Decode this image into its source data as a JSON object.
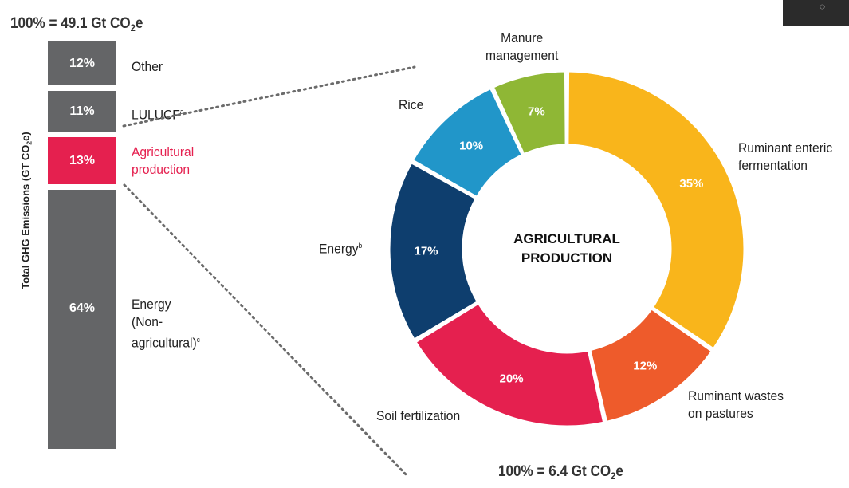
{
  "header": {
    "total_left": "100% = 49.1 Gt CO",
    "total_left_sub": "2",
    "total_left_tail": "e",
    "total_right": "100% = 6.4 Gt CO",
    "total_right_sub": "2",
    "total_right_tail": "e"
  },
  "ylabel": {
    "main": "Total GHG Emissions (GT CO",
    "sub": "2",
    "tail": "e)"
  },
  "center_title": {
    "line1": "AGRICULTURAL",
    "line2": "PRODUCTION"
  },
  "colors": {
    "bar_gray": "#646567",
    "bar_highlight": "#e5204f",
    "connector": "#6b6b6b",
    "corner_box": "#2b2b2b"
  },
  "chart_data": [
    {
      "type": "bar",
      "stacked": true,
      "ylabel": "Total GHG Emissions (GT CO2e)",
      "total": "100% = 49.1 Gt CO2e",
      "segments": [
        {
          "label": "Other",
          "value": 12,
          "display": "12%",
          "color": "#646567",
          "sup": ""
        },
        {
          "label": "LULUCF",
          "value": 11,
          "display": "11%",
          "color": "#646567",
          "sup": "a"
        },
        {
          "label": "Agricultural production",
          "value": 13,
          "display": "13%",
          "color": "#e5204f",
          "sup": "",
          "highlight": true
        },
        {
          "label": "Energy (Non-agricultural)",
          "value": 64,
          "display": "64%",
          "color": "#646567",
          "sup": "c"
        }
      ]
    },
    {
      "type": "pie",
      "donut": true,
      "center_label": "AGRICULTURAL PRODUCTION",
      "total": "100% = 6.4 Gt CO2e",
      "slices": [
        {
          "label": "Ruminant enteric fermentation",
          "value": 35,
          "display": "35%",
          "color": "#f9b51b"
        },
        {
          "label": "Ruminant wastes on pastures",
          "value": 12,
          "display": "12%",
          "color": "#ee5b2b"
        },
        {
          "label": "Soil fertilization",
          "value": 20,
          "display": "20%",
          "color": "#e5204f"
        },
        {
          "label": "Energy",
          "value": 17,
          "display": "17%",
          "color": "#0e3e6e",
          "sup": "b"
        },
        {
          "label": "Rice",
          "value": 10,
          "display": "10%",
          "color": "#2196c9"
        },
        {
          "label": "Manure management",
          "value": 7,
          "display": "7%",
          "color": "#8fb735"
        }
      ]
    }
  ],
  "labels": {
    "other": "Other",
    "lulucf": "LULUCF",
    "lulucf_sup": "a",
    "agri_line1": "Agricultural",
    "agri_line2": "production",
    "energy_line1": "Energy",
    "energy_line2": "(Non-",
    "energy_line3": "agricultural)",
    "energy_sup": "c",
    "manure_line1": "Manure",
    "manure_line2": "management",
    "rice": "Rice",
    "ruminant_enteric_line1": "Ruminant enteric",
    "ruminant_enteric_line2": "fermentation",
    "energy_b": "Energy",
    "energy_b_sup": "b",
    "soil": "Soil fertilization",
    "ruminant_wastes_line1": "Ruminant wastes",
    "ruminant_wastes_line2": "on pastures"
  }
}
